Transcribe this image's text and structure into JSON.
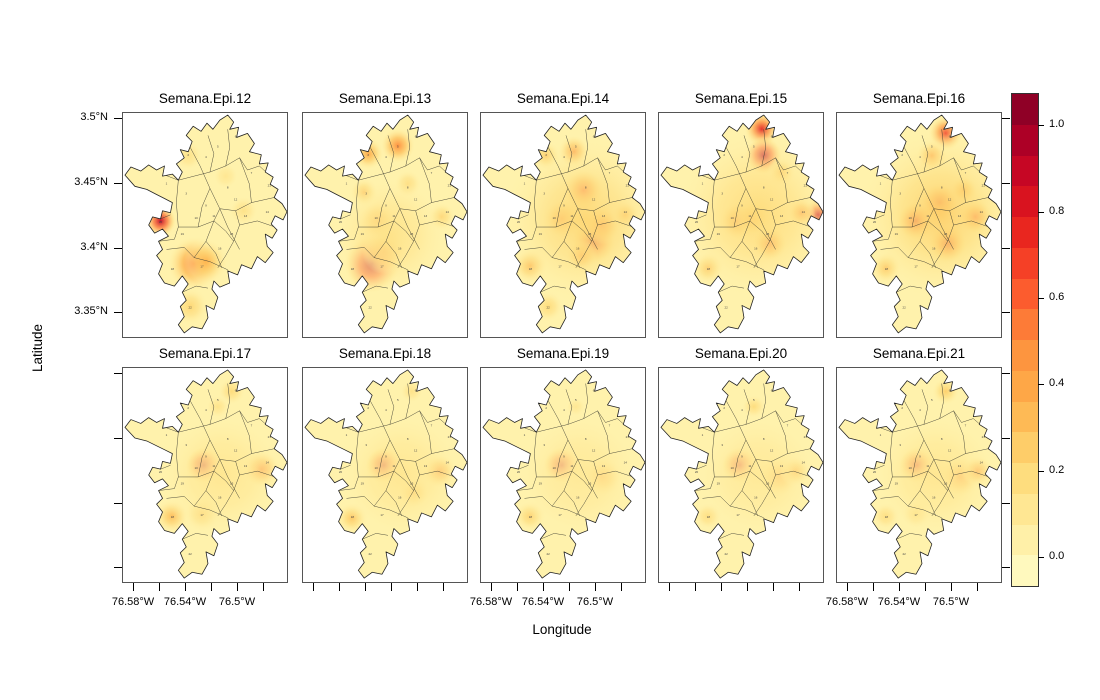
{
  "figure": {
    "xlabel": "Longitude",
    "ylabel": "Latitude",
    "background": "#ffffff"
  },
  "chart_data": {
    "type": "heatmap",
    "subtype": "faceted kernel-density disease-intensity maps over city comunas (lattice/spplot style)",
    "title": "",
    "legend_position": "right",
    "grid": false,
    "panel_titles": [
      "Semana.Epi.12",
      "Semana.Epi.13",
      "Semana.Epi.14",
      "Semana.Epi.15",
      "Semana.Epi.16",
      "Semana.Epi.17",
      "Semana.Epi.18",
      "Semana.Epi.19",
      "Semana.Epi.20",
      "Semana.Epi.21"
    ],
    "x_axis": {
      "label": "Longitude",
      "tick_labels": [
        "76.58°W",
        "76.54°W",
        "76.5°W"
      ],
      "tick_values_deg_w": [
        76.58,
        76.56,
        76.54,
        76.52,
        76.5,
        76.48
      ],
      "labeled_tick_indices": [
        0,
        2,
        4
      ],
      "labels_under_columns": [
        0,
        2,
        4
      ]
    },
    "y_axis": {
      "label": "Latitude",
      "tick_labels": [
        "3.5°N",
        "3.45°N",
        "3.4°N",
        "3.35°N"
      ],
      "tick_values_deg_n": [
        3.5,
        3.45,
        3.4,
        3.35
      ],
      "labels_on_row": 0
    },
    "colorbar": {
      "tick_labels": [
        "1.0",
        "0.8",
        "0.6",
        "0.4",
        "0.2",
        "0.0"
      ],
      "tick_values": [
        1.0,
        0.8,
        0.6,
        0.4,
        0.2,
        0.0
      ],
      "value_top": 1.075,
      "value_bottom": -0.065,
      "cells": 16,
      "palette": [
        "#FFFFCC",
        "#FFEDA0",
        "#FED976",
        "#FEB24C",
        "#FD8D3C",
        "#FC4E2A",
        "#E31A1C",
        "#BD0026",
        "#800026"
      ]
    },
    "panels": [
      {
        "label": "Semana.Epi.12",
        "hotspots": [
          [
            38,
            106,
            10,
            0.92
          ],
          [
            72,
            148,
            17,
            0.55
          ],
          [
            84,
            146,
            14,
            0.35
          ],
          [
            68,
            190,
            12,
            0.22
          ],
          [
            66,
            42,
            10,
            0.15
          ],
          [
            122,
            96,
            10,
            0.15
          ],
          [
            104,
            62,
            9,
            0.12
          ]
        ]
      },
      {
        "label": "Semana.Epi.13",
        "hotspots": [
          [
            70,
            148,
            18,
            0.95
          ],
          [
            82,
            136,
            14,
            0.45
          ],
          [
            96,
            32,
            11,
            0.5
          ],
          [
            66,
            40,
            10,
            0.4
          ],
          [
            76,
            106,
            12,
            0.4
          ],
          [
            62,
            78,
            9,
            0.3
          ],
          [
            140,
            102,
            9,
            0.25
          ],
          [
            106,
            70,
            9,
            0.22
          ],
          [
            88,
            120,
            40,
            0.15
          ]
        ]
      },
      {
        "label": "Semana.Epi.14",
        "hotspots": [
          [
            114,
            126,
            14,
            0.85
          ],
          [
            122,
            110,
            12,
            0.6
          ],
          [
            104,
            76,
            13,
            0.65
          ],
          [
            82,
            104,
            12,
            0.5
          ],
          [
            94,
            38,
            10,
            0.45
          ],
          [
            66,
            42,
            9,
            0.3
          ],
          [
            50,
            150,
            11,
            0.35
          ],
          [
            102,
            140,
            10,
            0.45
          ],
          [
            146,
            100,
            9,
            0.35
          ],
          [
            68,
            190,
            10,
            0.2
          ],
          [
            105,
            105,
            55,
            0.22
          ]
        ]
      },
      {
        "label": "Semana.Epi.15",
        "hotspots": [
          [
            104,
            16,
            11,
            0.8
          ],
          [
            106,
            42,
            12,
            0.95
          ],
          [
            161,
            100,
            10,
            0.9
          ],
          [
            144,
            98,
            9,
            0.5
          ],
          [
            80,
            106,
            12,
            0.55
          ],
          [
            94,
            104,
            10,
            0.5
          ],
          [
            112,
            128,
            11,
            0.6
          ],
          [
            50,
            152,
            10,
            0.3
          ],
          [
            124,
            58,
            9,
            0.3
          ],
          [
            100,
            100,
            55,
            0.2
          ]
        ]
      },
      {
        "label": "Semana.Epi.16",
        "hotspots": [
          [
            110,
            20,
            11,
            0.7
          ],
          [
            104,
            88,
            12,
            0.75
          ],
          [
            80,
            106,
            12,
            0.8
          ],
          [
            140,
            102,
            11,
            0.6
          ],
          [
            112,
            128,
            12,
            0.75
          ],
          [
            96,
            42,
            10,
            0.4
          ],
          [
            50,
            152,
            10,
            0.3
          ],
          [
            128,
            76,
            9,
            0.4
          ],
          [
            105,
            100,
            55,
            0.25
          ]
        ]
      },
      {
        "label": "Semana.Epi.17",
        "hotspots": [
          [
            82,
            100,
            12,
            0.95
          ],
          [
            140,
            104,
            12,
            0.5
          ],
          [
            50,
            152,
            11,
            0.35
          ],
          [
            80,
            150,
            12,
            0.25
          ],
          [
            110,
            24,
            9,
            0.2
          ],
          [
            96,
            40,
            8,
            0.15
          ],
          [
            100,
            110,
            45,
            0.12
          ]
        ]
      },
      {
        "label": "Semana.Epi.18",
        "hotspots": [
          [
            82,
            100,
            12,
            0.9
          ],
          [
            138,
            106,
            11,
            0.45
          ],
          [
            112,
            128,
            10,
            0.35
          ],
          [
            50,
            154,
            10,
            0.3
          ],
          [
            110,
            24,
            8,
            0.15
          ],
          [
            100,
            110,
            45,
            0.12
          ]
        ]
      },
      {
        "label": "Semana.Epi.19",
        "hotspots": [
          [
            82,
            100,
            12,
            0.9
          ],
          [
            122,
            112,
            13,
            0.4
          ],
          [
            50,
            152,
            10,
            0.25
          ],
          [
            96,
            40,
            7,
            0.12
          ],
          [
            100,
            110,
            45,
            0.1
          ]
        ]
      },
      {
        "label": "Semana.Epi.20",
        "hotspots": [
          [
            82,
            100,
            12,
            0.85
          ],
          [
            120,
            112,
            13,
            0.45
          ],
          [
            138,
            106,
            10,
            0.35
          ],
          [
            96,
            40,
            8,
            0.2
          ],
          [
            50,
            152,
            9,
            0.2
          ],
          [
            100,
            110,
            45,
            0.1
          ]
        ]
      },
      {
        "label": "Semana.Epi.21",
        "hotspots": [
          [
            81,
            100,
            12,
            0.82
          ],
          [
            124,
            112,
            13,
            0.5
          ],
          [
            142,
            106,
            10,
            0.45
          ],
          [
            110,
            24,
            9,
            0.25
          ],
          [
            50,
            152,
            9,
            0.2
          ],
          [
            80,
            150,
            10,
            0.2
          ],
          [
            100,
            110,
            45,
            0.12
          ]
        ]
      }
    ],
    "map_labels": [
      [
        1,
        44,
        70
      ],
      [
        2,
        66,
        42
      ],
      [
        3,
        64,
        80
      ],
      [
        4,
        84,
        44
      ],
      [
        5,
        96,
        34
      ],
      [
        6,
        114,
        24
      ],
      [
        7,
        130,
        60
      ],
      [
        8,
        106,
        74
      ],
      [
        9,
        84,
        92
      ],
      [
        10,
        74,
        104
      ],
      [
        11,
        92,
        102
      ],
      [
        12,
        114,
        86
      ],
      [
        13,
        124,
        102
      ],
      [
        14,
        146,
        98
      ],
      [
        15,
        110,
        120
      ],
      [
        16,
        98,
        134
      ],
      [
        17,
        80,
        152
      ],
      [
        18,
        50,
        154
      ],
      [
        19,
        60,
        120
      ],
      [
        20,
        38,
        108
      ],
      [
        21,
        148,
        72
      ],
      [
        22,
        68,
        192
      ]
    ]
  }
}
